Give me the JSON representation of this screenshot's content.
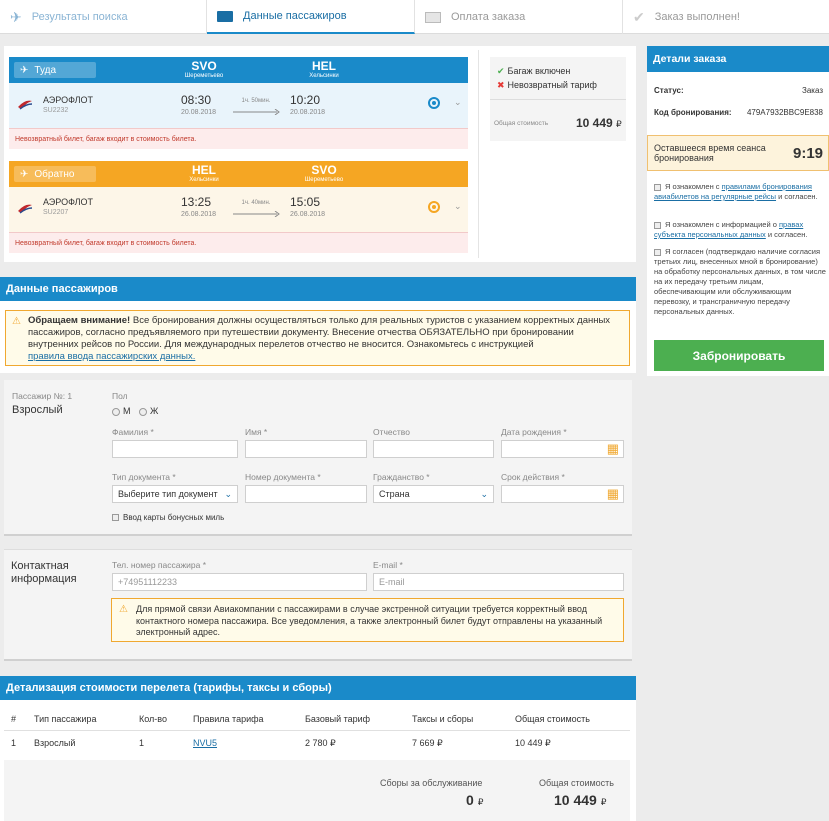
{
  "steps": [
    {
      "label": "Результаты поиска"
    },
    {
      "label": "Данные пассажиров"
    },
    {
      "label": "Оплата заказа"
    },
    {
      "label": "Заказ выполнен!"
    }
  ],
  "outbound": {
    "direction": "Туда",
    "from_code": "SVO",
    "from_city": "Шереметьево",
    "to_code": "HEL",
    "to_city": "Хельсинки",
    "airline": "АЭРОФЛОТ",
    "flight": "SU2232",
    "dep_time": "08:30",
    "dep_date": "20.08.2018",
    "duration": "1ч. 50мин.",
    "arr_time": "10:20",
    "arr_date": "20.08.2018",
    "warning": "Невозвратный билет, багаж входит в стоимость билета."
  },
  "inbound": {
    "direction": "Обратно",
    "from_code": "HEL",
    "from_city": "Хельсинки",
    "to_code": "SVO",
    "to_city": "Шереметьево",
    "airline": "АЭРОФЛОТ",
    "flight": "SU2207",
    "dep_time": "13:25",
    "dep_date": "26.08.2018",
    "duration": "1ч. 40мин.",
    "arr_time": "15:05",
    "arr_date": "26.08.2018",
    "warning": "Невозвратный билет, багаж входит в стоимость билета."
  },
  "fare_box": {
    "baggage": "Багаж включен",
    "nonrefundable": "Невозвратный тариф",
    "total_label": "Общая стоимость",
    "total_value": "10 449",
    "currency": "₽"
  },
  "order": {
    "title": "Детали заказа",
    "status_label": "Статус:",
    "status_value": "Заказ",
    "code_label": "Код бронирования:",
    "code_value": "479A7932BBC9E838",
    "timer_label": "Оставшееся время сеанса бронирования",
    "timer_value": "9:19",
    "check1_pre": "Я ознакомлен с ",
    "check1_link": "правилами бронирования авиабилетов на регулярные рейсы",
    "check1_post": " и согласен.",
    "check2_pre": "Я ознакомлен с информацией о ",
    "check2_link": "правах субъекта персональных данных",
    "check2_post": " и согласен.",
    "check3": "Я согласен (подтверждаю наличие согласия третьих лиц, внесенных мной в бронирование) на обработку персональных данных, в том числе на их передачу третьим лицам, обеспечивающим или обслуживающим перевозку, и трансграничную передачу персональных данных.",
    "book_button": "Забронировать"
  },
  "passengers": {
    "title": "Данные пассажиров",
    "notice_bold": "Обращаем внимание!",
    "notice_text": " Все бронирования должны осуществляться только для реальных туристов с указанием корректных данных пассажиров, согласно предъявляемого при путешествии документу. Внесение отчества ОБЯЗАТЕЛЬНО при бронировании внутренних рейсов по России. Для международных перелетов отчество не вносится. Ознакомьтесь с инструкцией",
    "notice_link": "правила ввода пассажирских данных.",
    "pax_no": "Пассажир №: 1",
    "pax_type": "Взрослый",
    "gender_label": "Пол",
    "gender_m": "М",
    "gender_f": "Ж",
    "surname_label": "Фамилия *",
    "name_label": "Имя *",
    "patronymic_label": "Отчество",
    "birth_label": "Дата рождения *",
    "doctype_label": "Тип документа *",
    "doctype_value": "Выберите тип документ",
    "docnum_label": "Номер документа *",
    "citizenship_label": "Гражданство *",
    "citizenship_value": "Страна",
    "expiry_label": "Срок действия *",
    "bonus_label": "Ввод карты бонусных миль"
  },
  "contact": {
    "title": "Контактная информация",
    "phone_label": "Тел. номер пассажира *",
    "phone_placeholder": "+74951112233",
    "email_label": "E-mail *",
    "email_placeholder": "E-mail",
    "notice": "Для прямой связи Авиакомпании с пассажирами в случае экстренной ситуации требуется корректный ввод контактного номера пассажира. Все уведомления, а также электронный билет будут отправлены на указанный электронный адрес."
  },
  "pricing": {
    "title": "Детализация стоимости перелета (тарифы, таксы и сборы)",
    "headers": [
      "#",
      "Тип пассажира",
      "Кол-во",
      "Правила тарифа",
      "Базовый тариф",
      "Таксы и сборы",
      "Общая стоимость"
    ],
    "row": {
      "num": "1",
      "type": "Взрослый",
      "qty": "1",
      "rule": "NVU5",
      "base": "2 780 ₽",
      "taxes": "7 669 ₽",
      "total": "10 449 ₽"
    },
    "service_label": "Сборы за обслуживание",
    "service_value": "0",
    "grand_label": "Общая стоимость",
    "grand_value": "10 449",
    "currency": "₽"
  }
}
